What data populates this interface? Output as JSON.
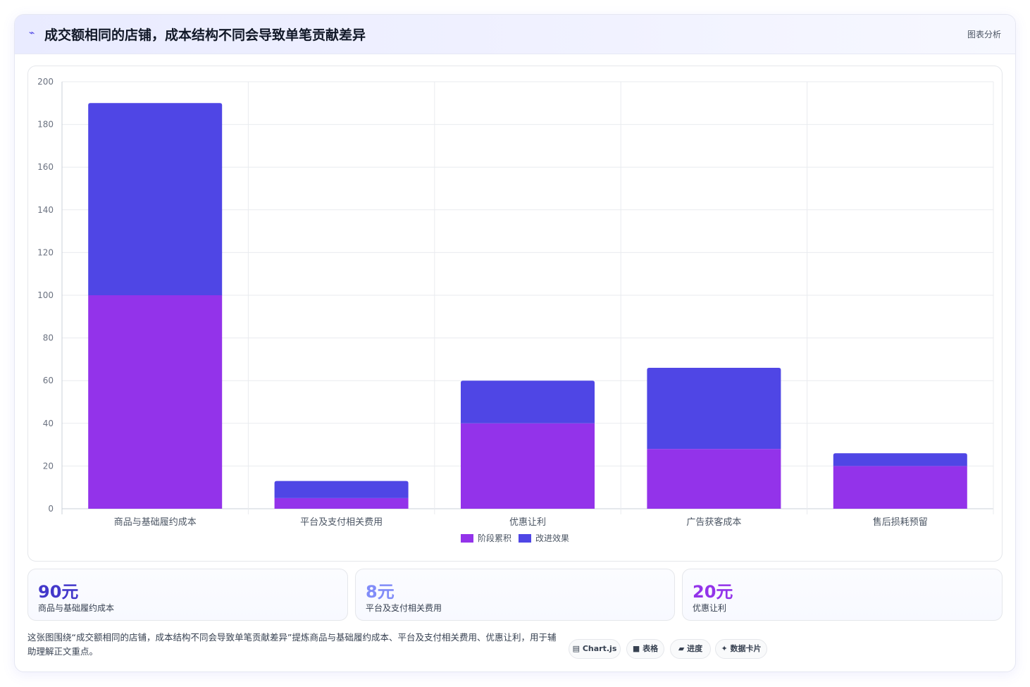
{
  "header": {
    "icon": "sparkline-icon",
    "title": "成交额相同的店铺，成本结构不同会导致单笔贡献差异",
    "tag": "图表分析"
  },
  "chart_data": {
    "type": "bar",
    "stacked": true,
    "title": "",
    "xlabel": "",
    "ylabel": "",
    "ylim": [
      0,
      200
    ],
    "yticks": [
      0,
      20,
      40,
      60,
      80,
      100,
      120,
      140,
      160,
      180,
      200
    ],
    "grid": true,
    "legend_position": "bottom",
    "categories": [
      "商品与基础履约成本",
      "平台及支付相关费用",
      "优惠让利",
      "广告获客成本",
      "售后损耗预留"
    ],
    "series": [
      {
        "name": "阶段累积",
        "color": "#9333ea",
        "values": [
          100,
          5,
          40,
          28,
          20
        ]
      },
      {
        "name": "改进效果",
        "color": "#4f46e5",
        "values": [
          90,
          8,
          20,
          38,
          6
        ]
      }
    ]
  },
  "stats": [
    {
      "value": "90元",
      "label": "商品与基础履约成本",
      "color": "#4338ca"
    },
    {
      "value": "8元",
      "label": "平台及支付相关费用",
      "color": "#818cf8"
    },
    {
      "value": "20元",
      "label": "优惠让利",
      "color": "#9333ea"
    }
  ],
  "caption": "这张图围绕“成交额相同的店铺，成本结构不同会导致单笔贡献差异”提炼商品与基础履约成本、平台及支付相关费用、优惠让利，用于辅助理解正文重点。",
  "chips": [
    {
      "icon": "chart-icon",
      "glyph": "▤",
      "label": "Chart.js"
    },
    {
      "icon": "table-icon",
      "glyph": "■",
      "label": "表格"
    },
    {
      "icon": "progress-icon",
      "glyph": "▰",
      "label": "进度"
    },
    {
      "icon": "sparkle-icon",
      "glyph": "✦",
      "label": "数据卡片"
    }
  ]
}
